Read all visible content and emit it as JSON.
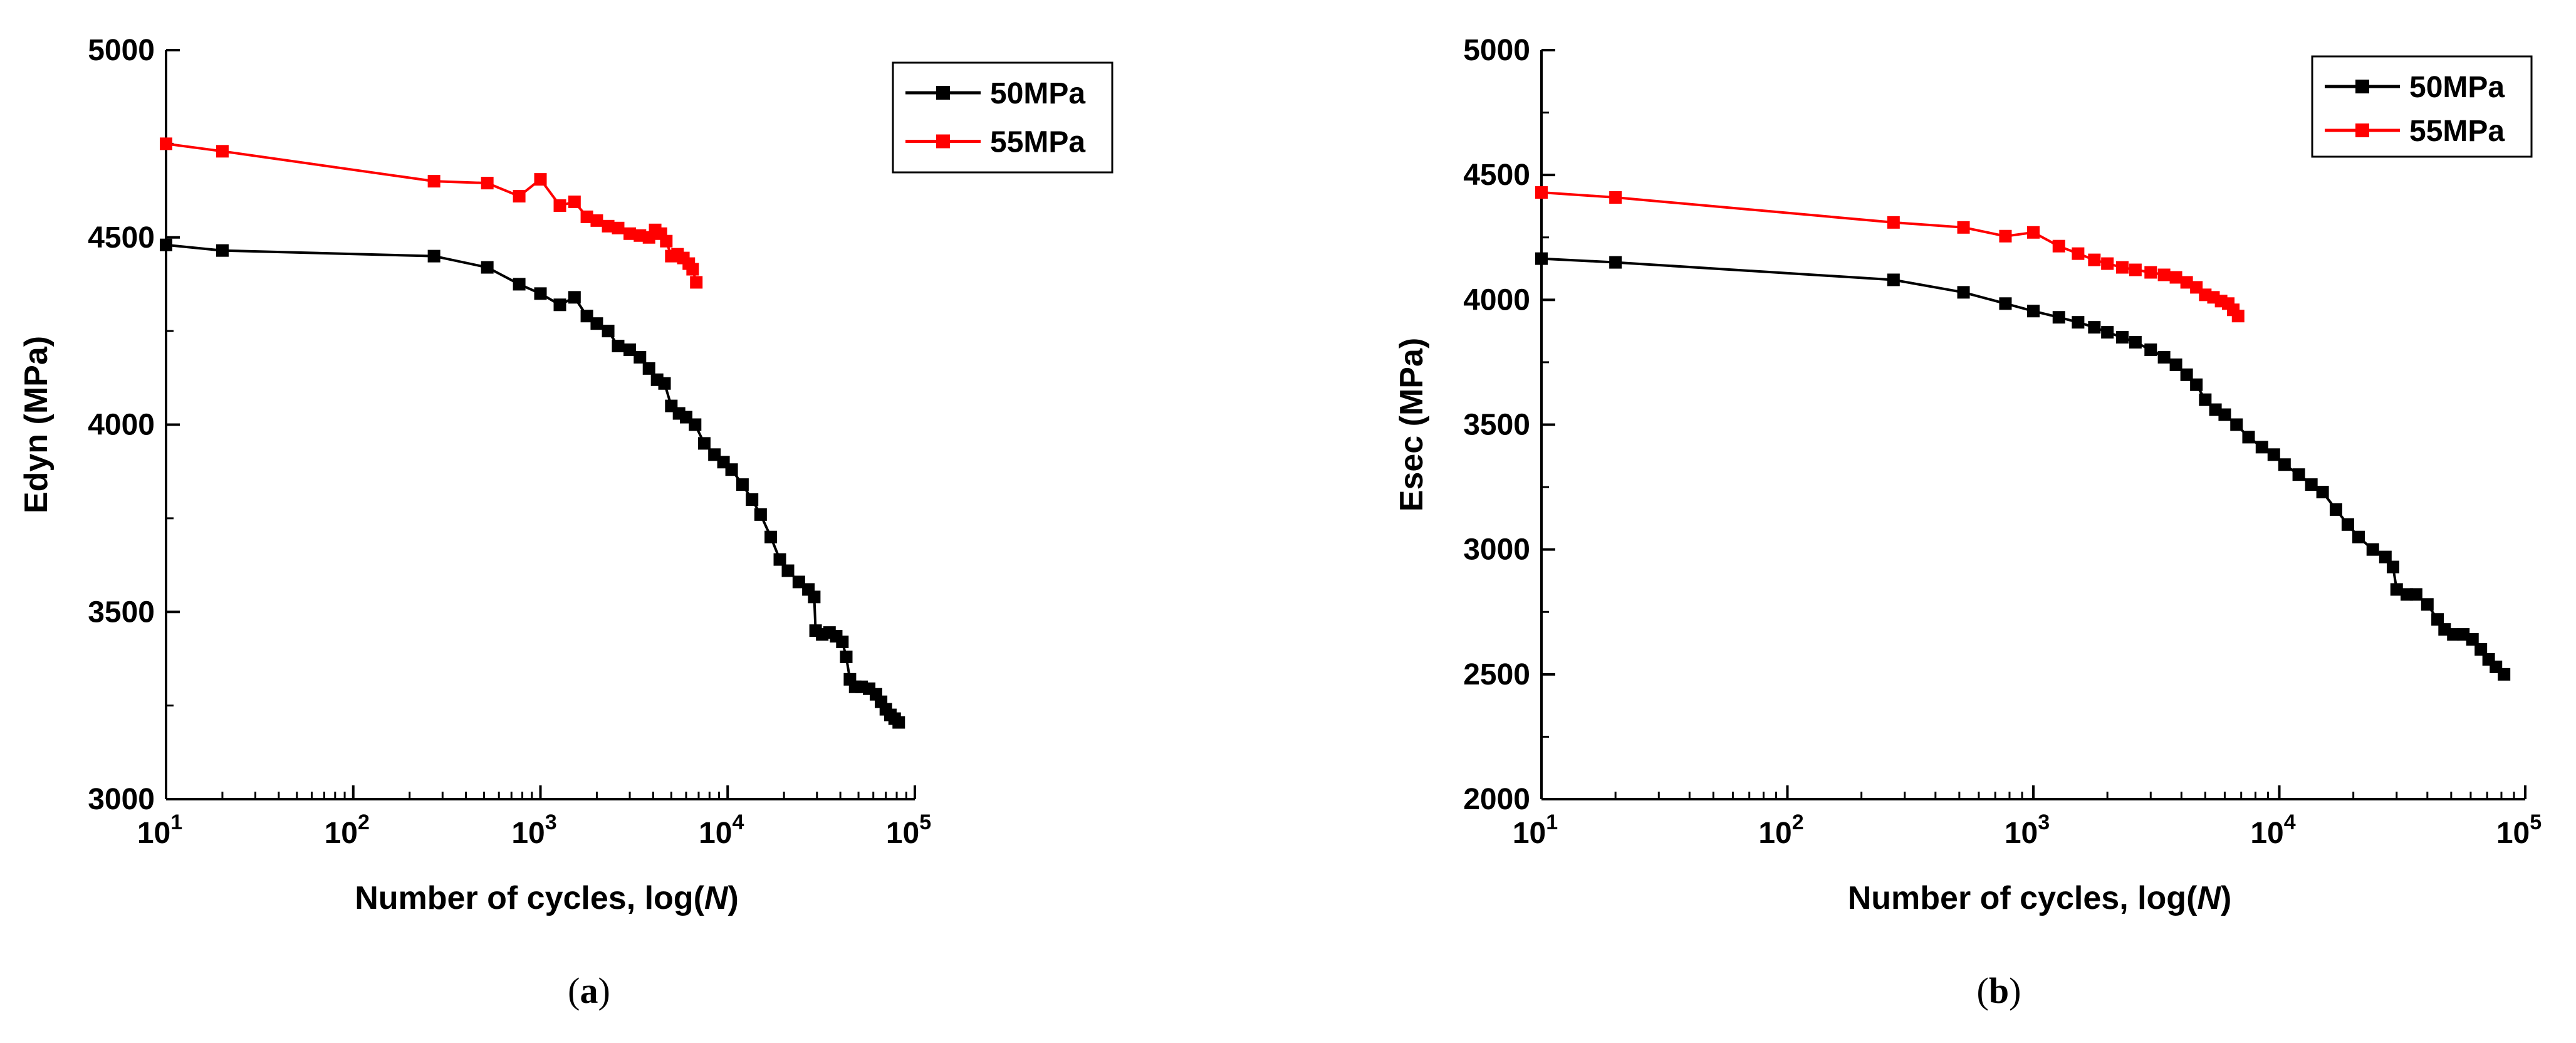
{
  "chart_data": [
    {
      "type": "line",
      "panel_label": "a",
      "title": "",
      "xlabel_main": "Number of cycles, log(",
      "xlabel_var": "N",
      "xlabel_close": ")",
      "ylabel": "Edyn (MPa)",
      "xscale": "log",
      "xlim": [
        10,
        100000
      ],
      "ylim": [
        3000,
        5000
      ],
      "yticks": [
        3000,
        3500,
        4000,
        4500,
        5000
      ],
      "ytick_labels": [
        "3000",
        "3500",
        "4000",
        "4500",
        "5000"
      ],
      "xticks": [
        10,
        100,
        1000,
        10000,
        100000
      ],
      "xtick_labels": [
        {
          "base": "10",
          "exp": "1"
        },
        {
          "base": "10",
          "exp": "2"
        },
        {
          "base": "10",
          "exp": "3"
        },
        {
          "base": "10",
          "exp": "4"
        },
        {
          "base": "10",
          "exp": "5"
        }
      ],
      "legend_position": "top-right",
      "series": [
        {
          "name": "50MPa",
          "color": "#000000",
          "points": [
            [
              10,
              4480
            ],
            [
              20,
              4465
            ],
            [
              270,
              4450
            ],
            [
              520,
              4420
            ],
            [
              770,
              4375
            ],
            [
              1000,
              4350
            ],
            [
              1270,
              4320
            ],
            [
              1520,
              4340
            ],
            [
              1770,
              4290
            ],
            [
              2000,
              4270
            ],
            [
              2300,
              4250
            ],
            [
              2600,
              4210
            ],
            [
              3000,
              4200
            ],
            [
              3400,
              4180
            ],
            [
              3800,
              4150
            ],
            [
              4200,
              4120
            ],
            [
              4600,
              4110
            ],
            [
              5000,
              4050
            ],
            [
              5500,
              4030
            ],
            [
              6000,
              4020
            ],
            [
              6700,
              4000
            ],
            [
              7500,
              3950
            ],
            [
              8500,
              3920
            ],
            [
              9500,
              3900
            ],
            [
              10500,
              3880
            ],
            [
              12000,
              3840
            ],
            [
              13500,
              3800
            ],
            [
              15000,
              3760
            ],
            [
              17000,
              3700
            ],
            [
              19000,
              3640
            ],
            [
              21000,
              3610
            ],
            [
              24000,
              3580
            ],
            [
              27000,
              3560
            ],
            [
              29000,
              3540
            ],
            [
              29500,
              3450
            ],
            [
              32000,
              3440
            ],
            [
              35000,
              3445
            ],
            [
              38000,
              3435
            ],
            [
              41000,
              3420
            ],
            [
              43000,
              3380
            ],
            [
              45000,
              3320
            ],
            [
              48000,
              3300
            ],
            [
              52000,
              3300
            ],
            [
              57000,
              3295
            ],
            [
              62000,
              3280
            ],
            [
              66000,
              3260
            ],
            [
              70000,
              3240
            ],
            [
              74000,
              3225
            ],
            [
              78000,
              3215
            ],
            [
              82000,
              3205
            ]
          ]
        },
        {
          "name": "55MPa",
          "color": "#ff0000",
          "points": [
            [
              10,
              4750
            ],
            [
              20,
              4730
            ],
            [
              270,
              4650
            ],
            [
              520,
              4645
            ],
            [
              770,
              4610
            ],
            [
              1000,
              4655
            ],
            [
              1270,
              4585
            ],
            [
              1520,
              4595
            ],
            [
              1770,
              4555
            ],
            [
              2000,
              4545
            ],
            [
              2300,
              4530
            ],
            [
              2600,
              4525
            ],
            [
              3000,
              4510
            ],
            [
              3400,
              4505
            ],
            [
              3800,
              4500
            ],
            [
              4100,
              4520
            ],
            [
              4400,
              4510
            ],
            [
              4700,
              4490
            ],
            [
              5000,
              4450
            ],
            [
              5400,
              4455
            ],
            [
              5800,
              4445
            ],
            [
              6200,
              4430
            ],
            [
              6500,
              4415
            ],
            [
              6800,
              4380
            ]
          ]
        }
      ]
    },
    {
      "type": "line",
      "panel_label": "b",
      "title": "",
      "xlabel_main": "Number of cycles, log(",
      "xlabel_var": "N",
      "xlabel_close": ")",
      "ylabel": "Esec (MPa)",
      "xscale": "log",
      "xlim": [
        10,
        100000
      ],
      "ylim": [
        2000,
        5000
      ],
      "yticks": [
        2000,
        2500,
        3000,
        3500,
        4000,
        4500,
        5000
      ],
      "ytick_labels": [
        "2000",
        "2500",
        "3000",
        "3500",
        "4000",
        "4500",
        "5000"
      ],
      "xticks": [
        10,
        100,
        1000,
        10000,
        100000
      ],
      "xtick_labels": [
        {
          "base": "10",
          "exp": "1"
        },
        {
          "base": "10",
          "exp": "2"
        },
        {
          "base": "10",
          "exp": "3"
        },
        {
          "base": "10",
          "exp": "4"
        },
        {
          "base": "10",
          "exp": "5"
        }
      ],
      "legend_position": "top-right",
      "series": [
        {
          "name": "50MPa",
          "color": "#000000",
          "points": [
            [
              10,
              4165
            ],
            [
              20,
              4150
            ],
            [
              270,
              4080
            ],
            [
              520,
              4030
            ],
            [
              770,
              3985
            ],
            [
              1000,
              3955
            ],
            [
              1270,
              3930
            ],
            [
              1520,
              3910
            ],
            [
              1770,
              3890
            ],
            [
              2000,
              3870
            ],
            [
              2300,
              3850
            ],
            [
              2600,
              3830
            ],
            [
              3000,
              3800
            ],
            [
              3400,
              3770
            ],
            [
              3800,
              3740
            ],
            [
              4200,
              3700
            ],
            [
              4600,
              3660
            ],
            [
              5000,
              3600
            ],
            [
              5500,
              3560
            ],
            [
              6000,
              3540
            ],
            [
              6700,
              3500
            ],
            [
              7500,
              3450
            ],
            [
              8500,
              3410
            ],
            [
              9500,
              3380
            ],
            [
              10500,
              3340
            ],
            [
              12000,
              3300
            ],
            [
              13500,
              3260
            ],
            [
              15000,
              3230
            ],
            [
              17000,
              3160
            ],
            [
              19000,
              3100
            ],
            [
              21000,
              3050
            ],
            [
              24000,
              3000
            ],
            [
              27000,
              2970
            ],
            [
              29000,
              2930
            ],
            [
              30000,
              2840
            ],
            [
              33000,
              2820
            ],
            [
              36000,
              2820
            ],
            [
              40000,
              2780
            ],
            [
              44000,
              2720
            ],
            [
              47000,
              2680
            ],
            [
              51000,
              2660
            ],
            [
              56000,
              2660
            ],
            [
              61000,
              2640
            ],
            [
              66000,
              2600
            ],
            [
              71000,
              2560
            ],
            [
              76000,
              2530
            ],
            [
              82000,
              2500
            ]
          ]
        },
        {
          "name": "55MPa",
          "color": "#ff0000",
          "points": [
            [
              10,
              4430
            ],
            [
              20,
              4410
            ],
            [
              270,
              4310
            ],
            [
              520,
              4290
            ],
            [
              770,
              4255
            ],
            [
              1000,
              4270
            ],
            [
              1270,
              4215
            ],
            [
              1520,
              4185
            ],
            [
              1770,
              4160
            ],
            [
              2000,
              4145
            ],
            [
              2300,
              4130
            ],
            [
              2600,
              4120
            ],
            [
              3000,
              4110
            ],
            [
              3400,
              4100
            ],
            [
              3800,
              4090
            ],
            [
              4200,
              4070
            ],
            [
              4600,
              4050
            ],
            [
              5000,
              4020
            ],
            [
              5400,
              4010
            ],
            [
              5800,
              3995
            ],
            [
              6200,
              3985
            ],
            [
              6500,
              3960
            ],
            [
              6800,
              3935
            ]
          ]
        }
      ]
    }
  ]
}
